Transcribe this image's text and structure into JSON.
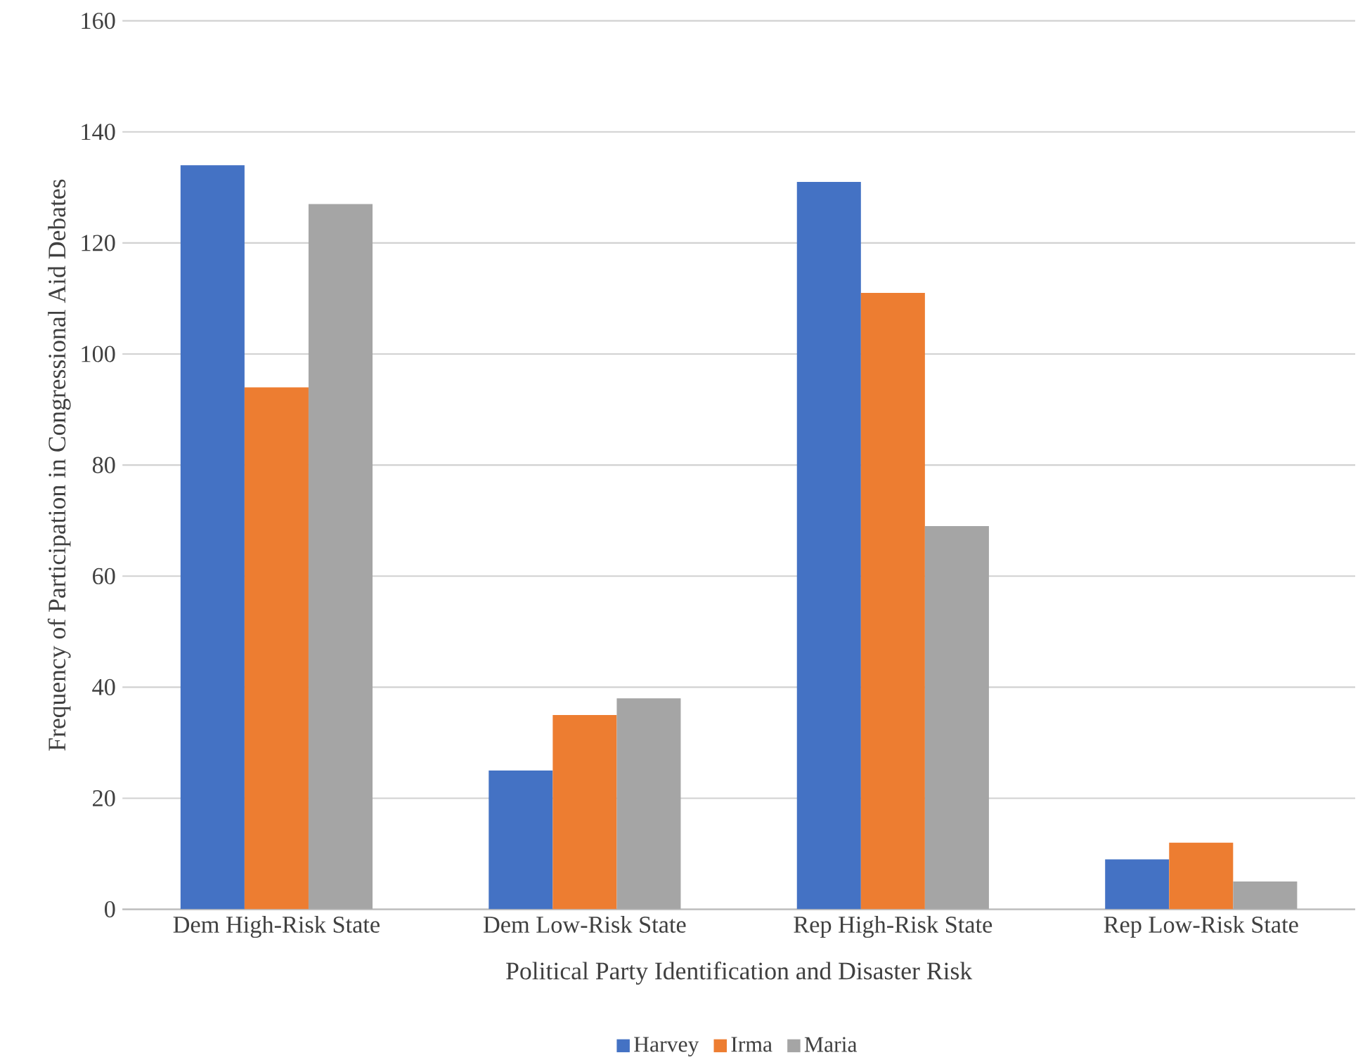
{
  "chart_data": {
    "type": "bar",
    "xlabel": "Political Party Identification and Disaster Risk",
    "ylabel": "Frequency of Participation in Congressional Aid Debates",
    "categories": [
      "Dem High-Risk State",
      "Dem Low-Risk State",
      "Rep High-Risk State",
      "Rep Low-Risk State"
    ],
    "series": [
      {
        "name": "Harvey",
        "color": "#4472c4",
        "values": [
          134,
          25,
          131,
          9
        ]
      },
      {
        "name": "Irma",
        "color": "#ed7d31",
        "values": [
          94,
          35,
          111,
          12
        ]
      },
      {
        "name": "Maria",
        "color": "#a5a5a5",
        "values": [
          127,
          38,
          69,
          5
        ]
      }
    ],
    "ylim": [
      0,
      160
    ],
    "yticks": [
      0,
      20,
      40,
      60,
      80,
      100,
      120,
      140,
      160
    ],
    "grid": "y",
    "legend": "bottom"
  }
}
